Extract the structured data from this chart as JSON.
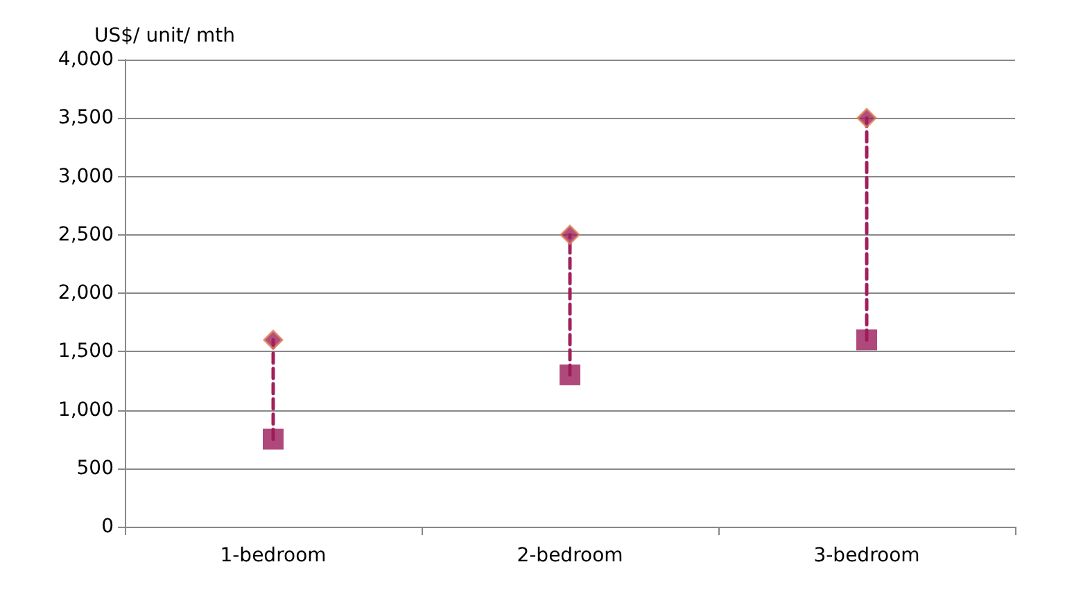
{
  "chart_data": {
    "type": "scatter",
    "ylabel": "US$/ unit/ mth",
    "categories": [
      "1-bedroom",
      "2-bedroom",
      "3-bedroom"
    ],
    "series": [
      {
        "marker": "square",
        "color": "#9b1b5a",
        "values": [
          750,
          1300,
          1600
        ]
      },
      {
        "marker": "diamond",
        "color": "#a0205a",
        "values": [
          1600,
          2500,
          3500
        ]
      }
    ],
    "line_style": "dashed",
    "ylim": [
      0,
      4000
    ],
    "yticks": [
      0,
      500,
      {
        "value": 1000,
        "label": "1,000"
      },
      {
        "value": 1500,
        "label": "1,500"
      },
      {
        "value": 2000,
        "label": "2,000"
      },
      {
        "value": 2500,
        "label": "2,500"
      },
      {
        "value": 3000,
        "label": "3,000"
      },
      {
        "value": 3500,
        "label": "3,500"
      },
      {
        "value": 4000,
        "label": "4,000"
      }
    ],
    "grid": "y"
  }
}
